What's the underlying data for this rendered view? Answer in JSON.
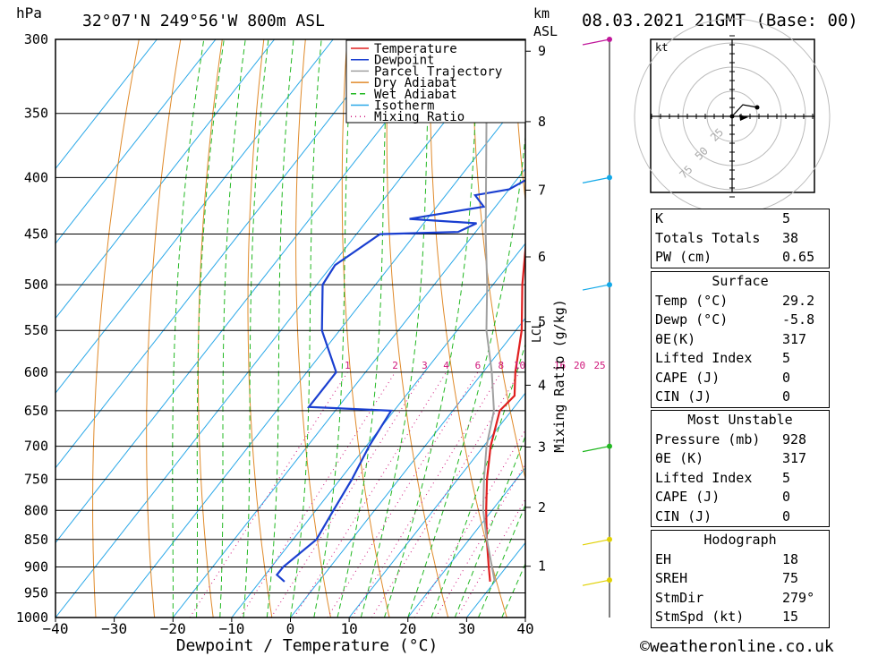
{
  "header": {
    "location": "32°07'N 249°56'W 800m ASL",
    "datetime": "08.03.2021 21GMT (Base: 00)",
    "pressure_unit": "hPa",
    "km_label": "km",
    "asl_label": "ASL",
    "copyright": "©weatheronline.co.uk"
  },
  "chart_data": {
    "type": "line",
    "xlabel": "Dewpoint / Temperature (°C)",
    "ylabel": "hPa",
    "right_label": "Mixing Ratio (g/kg)",
    "x_ticks": [
      -40,
      -30,
      -20,
      -10,
      0,
      10,
      20,
      30,
      40
    ],
    "pressure_levels": [
      300,
      350,
      400,
      450,
      500,
      550,
      600,
      650,
      700,
      750,
      800,
      850,
      900,
      950,
      1000
    ],
    "km_ticks": [
      1,
      2,
      3,
      4,
      5,
      6,
      7,
      8,
      9
    ],
    "mixing_ratio_labels": [
      "1",
      "2",
      "3",
      "4",
      "6",
      "8",
      "10",
      "16",
      "20",
      "25"
    ],
    "legend": [
      "Temperature",
      "Dewpoint",
      "Parcel Trajectory",
      "Dry Adiabat",
      "Wet Adiabat",
      "Isotherm",
      "Mixing Ratio"
    ],
    "lcl_label": "LCL",
    "series": [
      {
        "name": "Temperature",
        "color": "#e02020",
        "points": [
          [
            928,
            29.2
          ],
          [
            900,
            27.0
          ],
          [
            850,
            23.0
          ],
          [
            800,
            19.0
          ],
          [
            750,
            15.0
          ],
          [
            700,
            11.2
          ],
          [
            650,
            8.0
          ],
          [
            630,
            8.5
          ],
          [
            600,
            5.5
          ],
          [
            550,
            1.0
          ],
          [
            500,
            -5.0
          ],
          [
            450,
            -11.0
          ],
          [
            400,
            -18.0
          ],
          [
            350,
            -26.0
          ],
          [
            320,
            -31.0
          ],
          [
            300,
            -35.0
          ]
        ]
      },
      {
        "name": "Dewpoint",
        "color": "#1a3fd0",
        "points": [
          [
            928,
            -5.8
          ],
          [
            915,
            -8.0
          ],
          [
            900,
            -8.0
          ],
          [
            850,
            -6.0
          ],
          [
            800,
            -7.0
          ],
          [
            750,
            -8.0
          ],
          [
            700,
            -9.5
          ],
          [
            650,
            -10.5
          ],
          [
            645,
            -25.0
          ],
          [
            600,
            -25.0
          ],
          [
            550,
            -33.0
          ],
          [
            500,
            -39.0
          ],
          [
            480,
            -39.5
          ],
          [
            450,
            -36.0
          ],
          [
            448,
            -23.0
          ],
          [
            440,
            -21.0
          ],
          [
            436,
            -33.0
          ],
          [
            425,
            -22.0
          ],
          [
            415,
            -25.0
          ],
          [
            410,
            -20.0
          ],
          [
            400,
            -18.0
          ],
          [
            390,
            -20.0
          ],
          [
            380,
            -15.0
          ],
          [
            370,
            -16.0
          ],
          [
            355,
            -20.0
          ],
          [
            345,
            -23.0
          ],
          [
            325,
            -25.0
          ],
          [
            320,
            -32.0
          ],
          [
            315,
            -25.0
          ],
          [
            310,
            -26.0
          ],
          [
            305,
            -25.0
          ],
          [
            300,
            -27.0
          ]
        ]
      },
      {
        "name": "Parcel Trajectory",
        "color": "#a0a0a0",
        "points": [
          [
            928,
            30.0
          ],
          [
            850,
            23.0
          ],
          [
            800,
            18.5
          ],
          [
            750,
            14.5
          ],
          [
            700,
            10.5
          ],
          [
            650,
            7.0
          ],
          [
            600,
            1.5
          ],
          [
            550,
            -5.0
          ],
          [
            500,
            -11.0
          ],
          [
            450,
            -18.0
          ],
          [
            400,
            -25.5
          ],
          [
            350,
            -34.0
          ],
          [
            300,
            -43.0
          ]
        ]
      }
    ]
  },
  "winds": [
    {
      "p": 300,
      "color": "#c0169a"
    },
    {
      "p": 400,
      "color": "#11a8e8"
    },
    {
      "p": 500,
      "color": "#11a8e8"
    },
    {
      "p": 700,
      "color": "#22b822"
    },
    {
      "p": 850,
      "color": "#e0d000"
    },
    {
      "p": 925,
      "color": "#e0d000"
    }
  ],
  "hodograph": {
    "unit": "kt",
    "rings": [
      "25",
      "50",
      "75"
    ]
  },
  "indices": {
    "k": {
      "label": "K",
      "value": "5"
    },
    "tt": {
      "label": "Totals Totals",
      "value": "38"
    },
    "pw": {
      "label": "PW (cm)",
      "value": "0.65"
    }
  },
  "surface": {
    "title": "Surface",
    "temp": {
      "label": "Temp (°C)",
      "value": "29.2"
    },
    "dewp": {
      "label": "Dewp (°C)",
      "value": "-5.8"
    },
    "theta": {
      "label": "θE(K)",
      "value": "317"
    },
    "li": {
      "label": "Lifted Index",
      "value": "5"
    },
    "cape": {
      "label": "CAPE (J)",
      "value": "0"
    },
    "cin": {
      "label": "CIN (J)",
      "value": "0"
    }
  },
  "most_unstable": {
    "title": "Most Unstable",
    "pressure": {
      "label": "Pressure (mb)",
      "value": "928"
    },
    "theta": {
      "label": "θE (K)",
      "value": "317"
    },
    "li": {
      "label": "Lifted Index",
      "value": "5"
    },
    "cape": {
      "label": "CAPE (J)",
      "value": "0"
    },
    "cin": {
      "label": "CIN (J)",
      "value": "0"
    }
  },
  "hodo_params": {
    "title": "Hodograph",
    "eh": {
      "label": "EH",
      "value": "18"
    },
    "srh": {
      "label": "SREH",
      "value": "75"
    },
    "dir": {
      "label": "StmDir",
      "value": "279°"
    },
    "spd": {
      "label": "StmSpd (kt)",
      "value": "15"
    }
  }
}
